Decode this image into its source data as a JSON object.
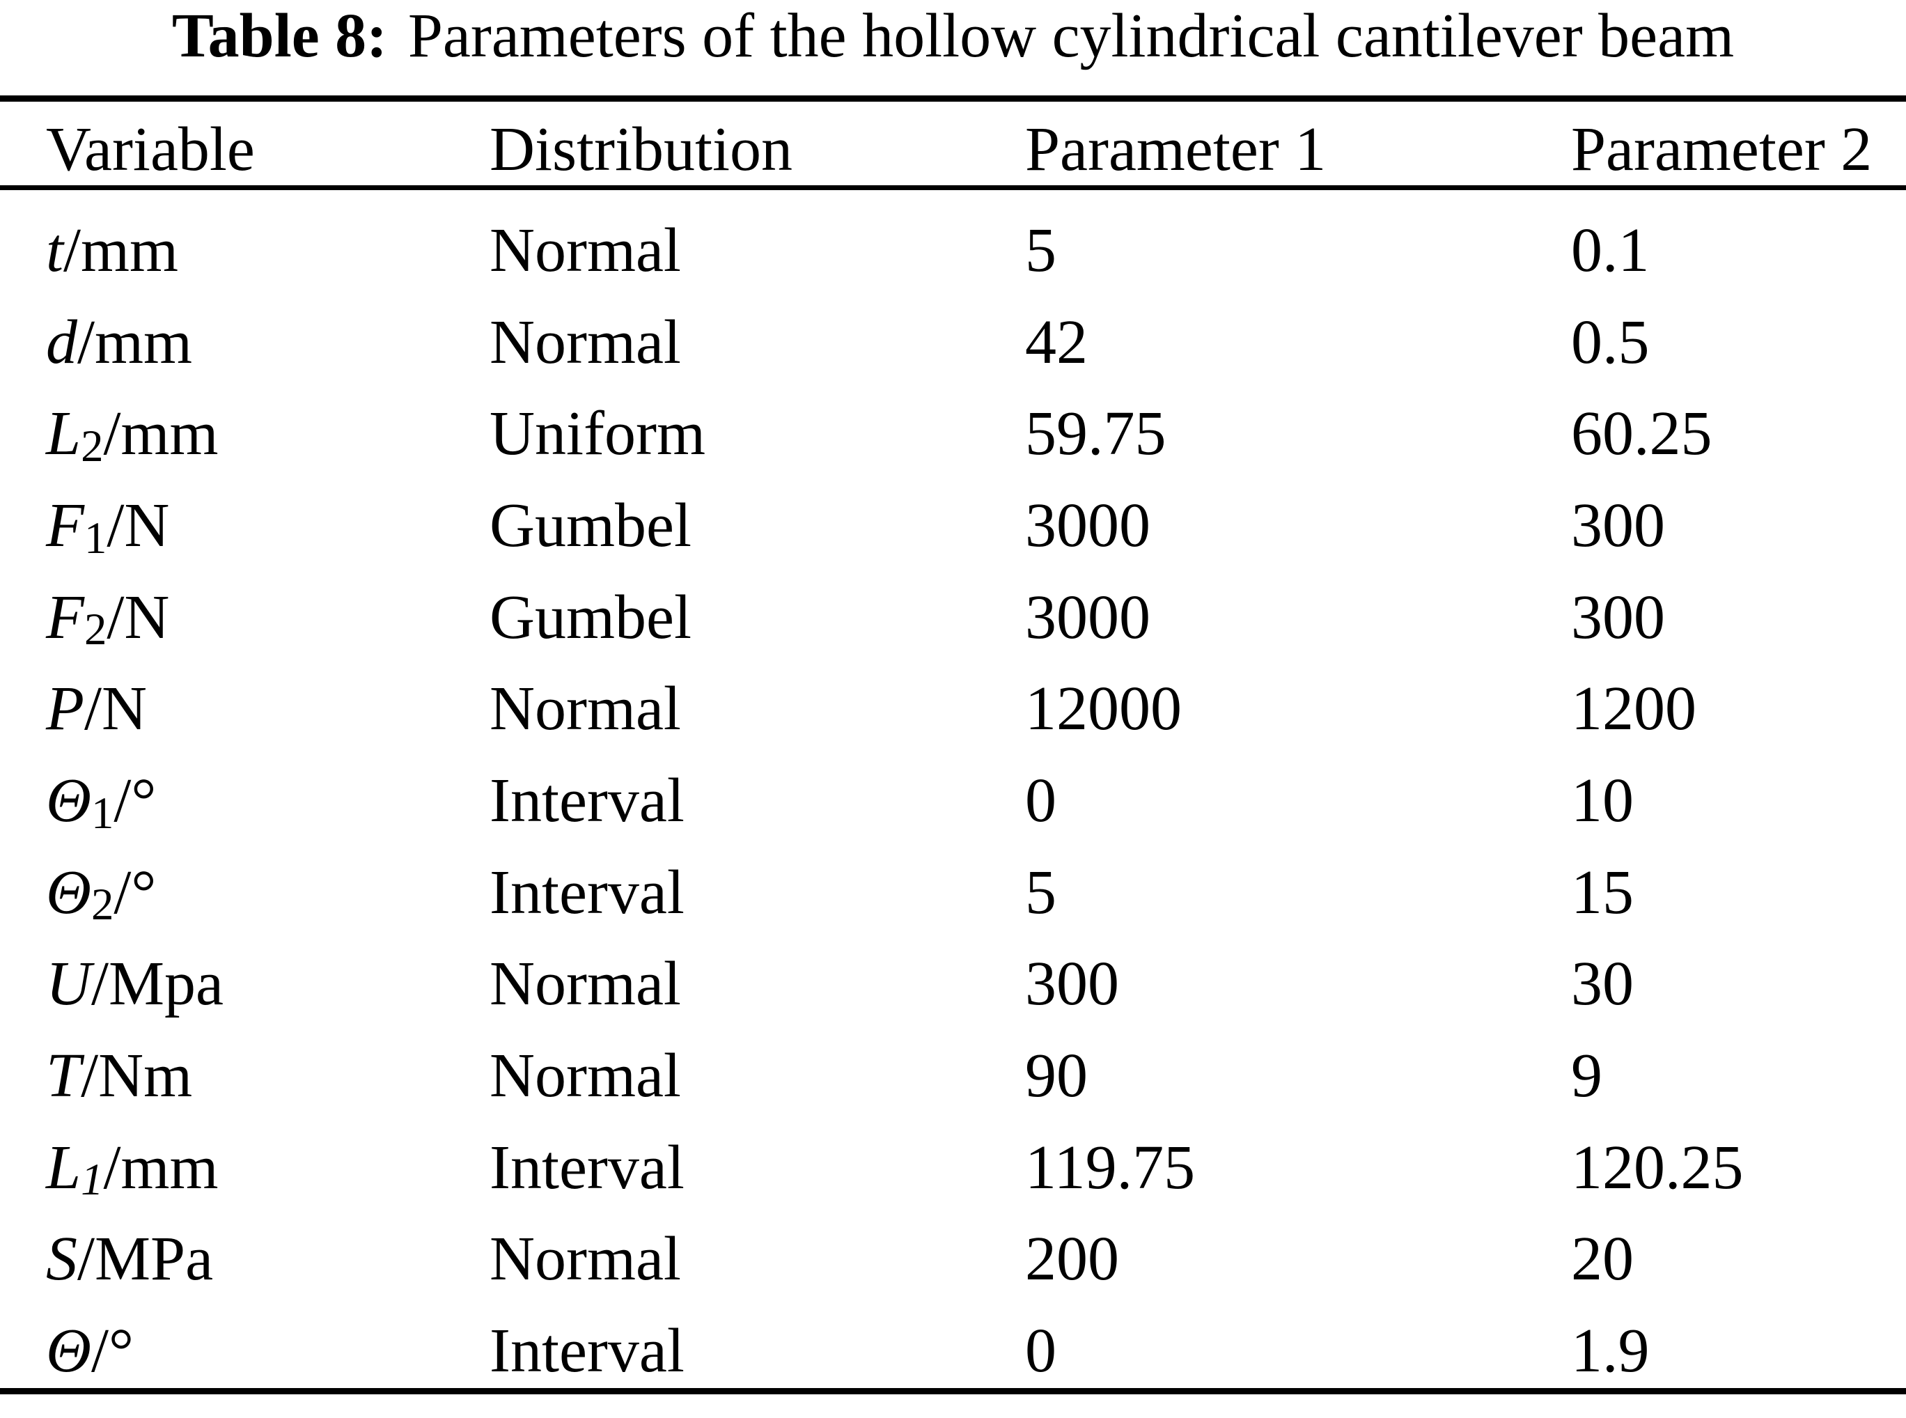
{
  "page": {
    "title_label": "Table 8:",
    "title_text": "Parameters of the hollow cylindrical cantilever beam"
  },
  "colors": {
    "text": "#000000",
    "background": "#ffffff",
    "rule": "#000000"
  },
  "table": {
    "columns": [
      "Variable",
      "Distribution",
      "Parameter 1",
      "Parameter 2"
    ],
    "rows": [
      {
        "var_base": "t",
        "var_sub": "",
        "var_unit": "/mm",
        "distribution": "Normal",
        "param1": "5",
        "param2": "0.1"
      },
      {
        "var_base": "d",
        "var_sub": "",
        "var_unit": "/mm",
        "distribution": "Normal",
        "param1": "42",
        "param2": "0.5"
      },
      {
        "var_base": "L",
        "var_sub": "2",
        "var_unit": "/mm",
        "distribution": "Uniform",
        "param1": "59.75",
        "param2": "60.25"
      },
      {
        "var_base": "F",
        "var_sub": "1",
        "var_unit": "/N",
        "distribution": "Gumbel",
        "param1": "3000",
        "param2": "300"
      },
      {
        "var_base": "F",
        "var_sub": "2",
        "var_unit": "/N",
        "distribution": "Gumbel",
        "param1": "3000",
        "param2": "300"
      },
      {
        "var_base": "P",
        "var_sub": "",
        "var_unit": "/N",
        "distribution": "Normal",
        "param1": "12000",
        "param2": "1200"
      },
      {
        "var_base": "Θ",
        "var_sub": "1",
        "var_unit": "/°",
        "distribution": "Interval",
        "param1": "0",
        "param2": "10"
      },
      {
        "var_base": "Θ",
        "var_sub": "2",
        "var_unit": "/°",
        "distribution": "Interval",
        "param1": "5",
        "param2": "15"
      },
      {
        "var_base": "U",
        "var_sub": "",
        "var_unit": "/Mpa",
        "distribution": "Normal",
        "param1": "300",
        "param2": "30"
      },
      {
        "var_base": "T",
        "var_sub": "",
        "var_unit": "/Nm",
        "distribution": "Normal",
        "param1": "90",
        "param2": "9"
      },
      {
        "var_base": "L",
        "var_sub": "1",
        "var_unit": "/mm",
        "distribution": "Interval",
        "param1": "119.75",
        "param2": "120.25"
      },
      {
        "var_base": "S",
        "var_sub": "",
        "var_unit": "/MPa",
        "distribution": "Normal",
        "param1": "200",
        "param2": "20"
      },
      {
        "var_base": "Θ",
        "var_sub": "",
        "var_unit": "/°",
        "distribution": "Interval",
        "param1": "0",
        "param2": "1.9"
      }
    ]
  }
}
